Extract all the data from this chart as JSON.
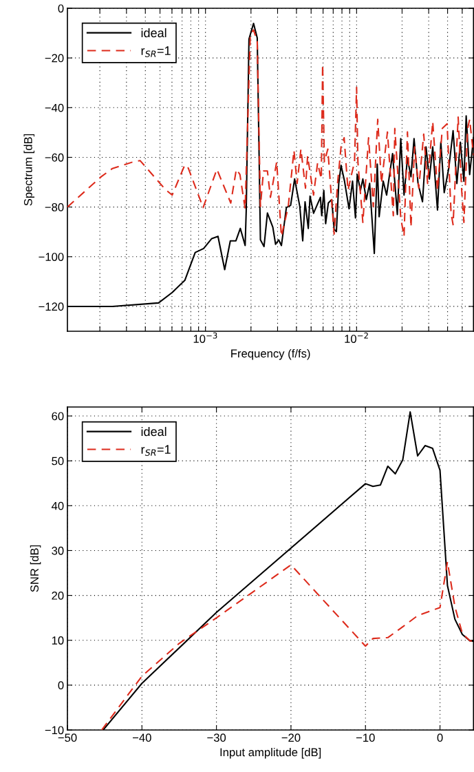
{
  "chart_data": [
    {
      "type": "line",
      "xlabel": "Frequency (f/fs)",
      "ylabel": "Spectrum [dB]",
      "log": "x",
      "grid": true,
      "legend": "top left",
      "xlim": [
        0.000122,
        0.0594
      ],
      "ylim": [
        -130,
        0
      ],
      "xticks": [
        {
          "value": 0.0002,
          "label": null
        },
        {
          "value": 0.0003,
          "label": null
        },
        {
          "value": 0.0004,
          "label": null
        },
        {
          "value": 0.0005,
          "label": null
        },
        {
          "value": 0.0006,
          "label": null
        },
        {
          "value": 0.0007,
          "label": null
        },
        {
          "value": 0.0008,
          "label": null
        },
        {
          "value": 0.0009,
          "label": null
        },
        {
          "value": 0.001,
          "label": "10$^{−3}$"
        },
        {
          "value": 0.002,
          "label": null
        },
        {
          "value": 0.003,
          "label": null
        },
        {
          "value": 0.004,
          "label": null
        },
        {
          "value": 0.005,
          "label": null
        },
        {
          "value": 0.006,
          "label": null
        },
        {
          "value": 0.007,
          "label": null
        },
        {
          "value": 0.008,
          "label": null
        },
        {
          "value": 0.009,
          "label": null
        },
        {
          "value": 0.01,
          "label": "10$^{−2}$"
        },
        {
          "value": 0.02,
          "label": null
        },
        {
          "value": 0.03,
          "label": null
        },
        {
          "value": 0.04,
          "label": null
        },
        {
          "value": 0.05,
          "label": null
        }
      ],
      "yticks": [
        -120,
        -100,
        -80,
        -60,
        -40,
        -20,
        0
      ],
      "series": [
        {
          "name": "ideal",
          "color": "#000000",
          "line_style": "solid",
          "x": [
            0.000122,
            0.000242,
            0.000489,
            0.000602,
            0.00073,
            0.000855,
            0.000972,
            0.0011,
            0.00121,
            0.00134,
            0.00146,
            0.00159,
            0.0017,
            0.00183,
            0.00186,
            0.00194,
            0.00208,
            0.0022,
            0.00231,
            0.00244,
            0.00257,
            0.00279,
            0.00291,
            0.00305,
            0.00318,
            0.00343,
            0.00366,
            0.00389,
            0.00421,
            0.0044,
            0.00456,
            0.00479,
            0.00492,
            0.00519,
            0.00576,
            0.00588,
            0.00607,
            0.00624,
            0.0065,
            0.00685,
            0.0071,
            0.00735,
            0.00762,
            0.00789,
            0.00832,
            0.00891,
            0.0094,
            0.00983,
            0.0101,
            0.0106,
            0.011,
            0.0116,
            0.0122,
            0.0131,
            0.0137,
            0.0141,
            0.015,
            0.0158,
            0.0173,
            0.0186,
            0.0196,
            0.0206,
            0.0217,
            0.0229,
            0.024,
            0.0255,
            0.0273,
            0.0288,
            0.0303,
            0.0319,
            0.0343,
            0.0361,
            0.038,
            0.0408,
            0.0435,
            0.0461,
            0.0486,
            0.0513,
            0.0531,
            0.056,
            0.0594
          ],
          "values": [
            -120,
            -120,
            -118.6,
            -114.4,
            -109.5,
            -98.3,
            -96.7,
            -92.7,
            -91.8,
            -105.2,
            -93.6,
            -93.6,
            -88.6,
            -95.5,
            -81.6,
            -12.4,
            -6.1,
            -11.9,
            -93.2,
            -95.9,
            -82.4,
            -88.1,
            -95,
            -93.2,
            -95.5,
            -80.2,
            -79.3,
            -68.7,
            -79.8,
            -93.6,
            -77.9,
            -88.6,
            -75.6,
            -82.5,
            -76.1,
            -83.5,
            -73.3,
            -86.7,
            -78.4,
            -77,
            -89,
            -89.9,
            -70.5,
            -63.2,
            -69.6,
            -80.7,
            -69.6,
            -84.4,
            -66.9,
            -73.3,
            -68.7,
            -77,
            -70.5,
            -98.7,
            -62.7,
            -83.9,
            -69.6,
            -75.2,
            -58.5,
            -83,
            -52.5,
            -75.2,
            -60.4,
            -67.8,
            -52.5,
            -70.5,
            -77.9,
            -55.8,
            -68.7,
            -55.8,
            -81.2,
            -53.9,
            -74.2,
            -64.1,
            -49.3,
            -70.5,
            -53.9,
            -69.6,
            -43.3,
            -66.9,
            -52.1
          ]
        },
        {
          "name": "r$_{SR}$=1",
          "color": "#dd2a1b",
          "line_style": "dashed",
          "x": [
            0.000122,
            0.000204,
            0.000242,
            0.000333,
            0.000369,
            0.000542,
            0.000602,
            0.00073,
            0.000769,
            0.000965,
            0.00119,
            0.00147,
            0.0016,
            0.00169,
            0.00183,
            0.00198,
            0.00208,
            0.0022,
            0.00231,
            0.00242,
            0.00257,
            0.00269,
            0.00296,
            0.00318,
            0.00353,
            0.00385,
            0.00404,
            0.00428,
            0.00459,
            0.00474,
            0.00519,
            0.00552,
            0.00584,
            0.00596,
            0.00612,
            0.00645,
            0.00674,
            0.0071,
            0.00748,
            0.00789,
            0.00827,
            0.00877,
            0.00926,
            0.00969,
            0.01,
            0.0102,
            0.011,
            0.012,
            0.0129,
            0.0138,
            0.0146,
            0.016,
            0.0175,
            0.0179,
            0.0196,
            0.0206,
            0.0217,
            0.0229,
            0.0242,
            0.0258,
            0.0278,
            0.0295,
            0.0319,
            0.0343,
            0.0369,
            0.0397,
            0.0422,
            0.0435,
            0.047,
            0.0496,
            0.0513,
            0.0543,
            0.056,
            0.0594
          ],
          "values": [
            -80,
            -67.8,
            -64.5,
            -61.8,
            -61.3,
            -72.9,
            -75.2,
            -63,
            -64.3,
            -80.2,
            -64.8,
            -78.4,
            -64.8,
            -66.9,
            -80.7,
            -10.5,
            -8.7,
            -13.3,
            -79.8,
            -65.5,
            -65.5,
            -76.1,
            -61.8,
            -91.8,
            -79.8,
            -57.2,
            -70.5,
            -56.7,
            -72.4,
            -59.5,
            -75.2,
            -62.2,
            -68.7,
            -22.5,
            -61.8,
            -56.7,
            -72.4,
            -90.9,
            -70.5,
            -55.8,
            -52.1,
            -73.3,
            -66.9,
            -61.8,
            -31.8,
            -61.8,
            -86.2,
            -52.1,
            -79.8,
            -44.7,
            -70.5,
            -49.8,
            -83.5,
            -48.4,
            -84.4,
            -91.8,
            -49.8,
            -88.1,
            -55.8,
            -72.4,
            -50.7,
            -70.5,
            -45.6,
            -73.3,
            -48.4,
            -46.5,
            -82.5,
            -87.1,
            -43.8,
            -73.3,
            -86.2,
            -48.4,
            -44.7,
            -59.2
          ]
        }
      ]
    },
    {
      "type": "line",
      "xlabel": "Input amplitude [dB]",
      "ylabel": "SNR [dB]",
      "grid": true,
      "legend": "top left",
      "xlim": [
        -50,
        4.5
      ],
      "ylim": [
        -10,
        62
      ],
      "xticks": [
        -50,
        -40,
        -30,
        -20,
        -10,
        0
      ],
      "yticks": [
        -10,
        0,
        10,
        20,
        30,
        40,
        50,
        60
      ],
      "series": [
        {
          "name": "ideal",
          "color": "#000000",
          "line_style": "solid",
          "x": [
            -45.2,
            -40,
            -30,
            -10,
            -9,
            -8,
            -7,
            -6,
            -5,
            -4,
            -3,
            -2,
            -1,
            0,
            1,
            2,
            3,
            4,
            4.5
          ],
          "values": [
            -10,
            0.4,
            16.2,
            44.9,
            44.3,
            44.6,
            48.8,
            47.1,
            50.2,
            60.9,
            51.1,
            53.4,
            52.8,
            47.9,
            22.2,
            14.7,
            11.3,
            9.9,
            9.8
          ]
        },
        {
          "name": "r$_{SR}$=1",
          "color": "#dd2a1b",
          "line_style": "dashed",
          "x": [
            -45.4,
            -40,
            -35,
            -30,
            -20,
            -10,
            -9,
            -7,
            -5,
            -3,
            0,
            1,
            2,
            3,
            4,
            4.5
          ],
          "values": [
            -10,
            2,
            9.3,
            15,
            26.8,
            8.7,
            10.4,
            10.6,
            13,
            15.5,
            17.3,
            27.5,
            17.5,
            11.5,
            9.9,
            9.8
          ]
        }
      ]
    }
  ]
}
